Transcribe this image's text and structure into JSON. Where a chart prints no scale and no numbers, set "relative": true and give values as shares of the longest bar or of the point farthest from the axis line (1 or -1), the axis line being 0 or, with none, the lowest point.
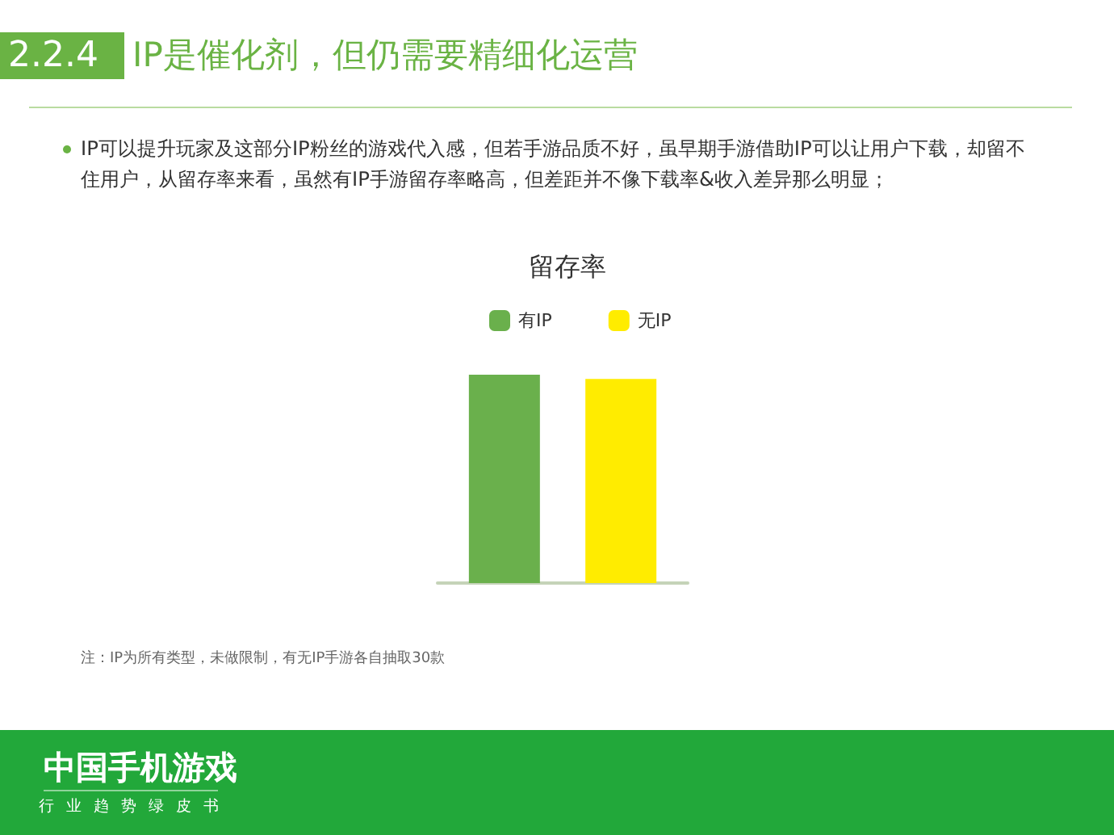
{
  "chart_data": {
    "type": "bar",
    "title": "留存率",
    "annotations": [
      "2.2.4",
      "IP是催化剂，但仍需要精细化运营",
      "IP可以提升玩家及这部分IP粉丝的游戏代入感，但若手游品质不好，虽早期手游借助IP可以让用户下载，却留不住用户，从留存率来看，虽然有IP手游留存率略高，但差距并不像下载率&收入差异那么明显；",
      "注：IP为所有类型，未做限制，有无IP手游各自抽取30款",
      "中国手机游戏",
      "行业趋势绿皮书"
    ],
    "categories": [
      null
    ],
    "series": [
      {
        "name": "有IP",
        "color": "#6ab04c",
        "values": [
          1
        ]
      },
      {
        "name": "无IP",
        "color": "#ffec00",
        "values": [
          0.98
        ]
      }
    ],
    "relative": true,
    "legend": "top"
  }
}
